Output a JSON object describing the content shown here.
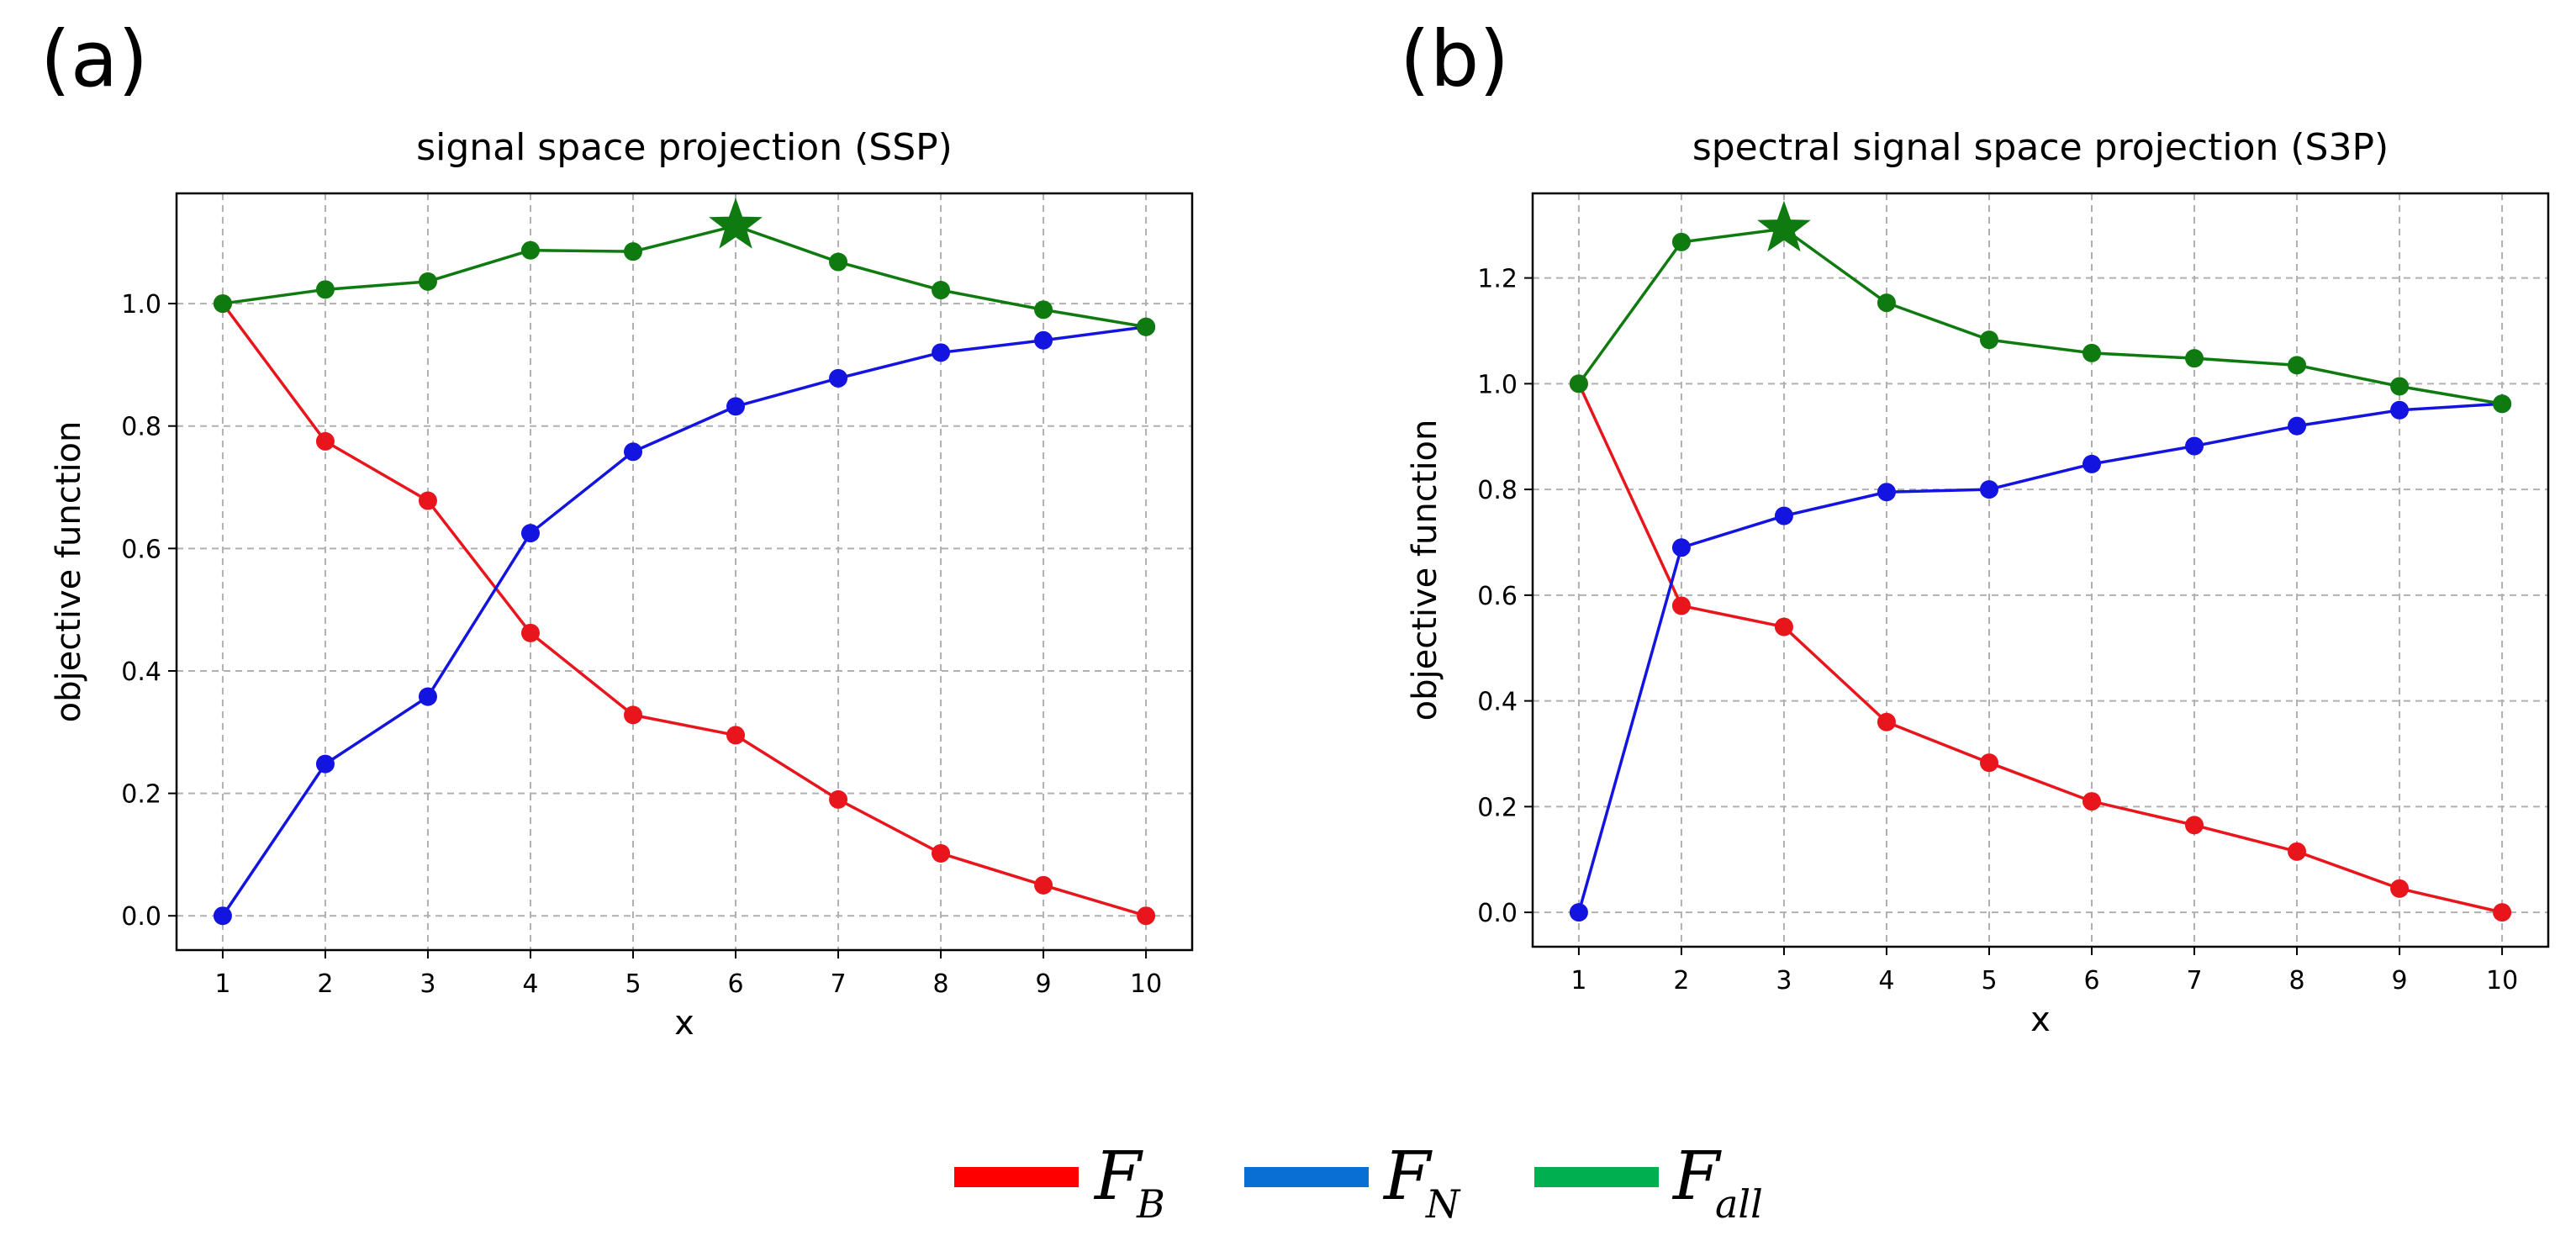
{
  "panel_labels": [
    "(a)",
    "(b)"
  ],
  "chart_data": [
    {
      "type": "line",
      "title": "signal space projection (SSP)",
      "xlabel": "x",
      "ylabel": "objective function",
      "x": [
        1,
        2,
        3,
        4,
        5,
        6,
        7,
        8,
        9,
        10
      ],
      "xlim": [
        0.55,
        10.45
      ],
      "ylim": [
        -0.056,
        1.18
      ],
      "yticks": [
        0.0,
        0.2,
        0.4,
        0.6,
        0.8,
        1.0
      ],
      "ytick_labels": [
        "0.0",
        "0.2",
        "0.4",
        "0.6",
        "0.8",
        "1.0"
      ],
      "xtick_labels": [
        "1",
        "2",
        "3",
        "4",
        "5",
        "6",
        "7",
        "8",
        "9",
        "10"
      ],
      "grid": true,
      "series": [
        {
          "name": "F_B",
          "color": "#e8161c",
          "values": [
            1.0,
            0.775,
            0.678,
            0.462,
            0.328,
            0.295,
            0.19,
            0.102,
            0.05,
            0.0
          ]
        },
        {
          "name": "F_N",
          "color": "#1414e0",
          "values": [
            0.0,
            0.248,
            0.358,
            0.625,
            0.758,
            0.832,
            0.878,
            0.92,
            0.94,
            0.962
          ]
        },
        {
          "name": "F_all",
          "color": "#0f7a0f",
          "values": [
            1.0,
            1.023,
            1.036,
            1.087,
            1.085,
            1.127,
            1.068,
            1.022,
            0.99,
            0.962
          ]
        }
      ],
      "optimum_marker": {
        "series": "F_all",
        "x": 6,
        "value": 1.127
      }
    },
    {
      "type": "line",
      "title": "spectral signal space projection (S3P)",
      "xlabel": "x",
      "ylabel": "objective function",
      "x": [
        1,
        2,
        3,
        4,
        5,
        6,
        7,
        8,
        9,
        10
      ],
      "xlim": [
        0.55,
        10.45
      ],
      "ylim": [
        -0.065,
        1.36
      ],
      "yticks": [
        0.0,
        0.2,
        0.4,
        0.6,
        0.8,
        1.0,
        1.2
      ],
      "ytick_labels": [
        "0.0",
        "0.2",
        "0.4",
        "0.6",
        "0.8",
        "1.0",
        "1.2"
      ],
      "xtick_labels": [
        "1",
        "2",
        "3",
        "4",
        "5",
        "6",
        "7",
        "8",
        "9",
        "10"
      ],
      "grid": true,
      "series": [
        {
          "name": "F_B",
          "color": "#e8161c",
          "values": [
            1.0,
            0.58,
            0.54,
            0.36,
            0.283,
            0.21,
            0.165,
            0.115,
            0.045,
            0.0
          ]
        },
        {
          "name": "F_N",
          "color": "#1414e0",
          "values": [
            0.0,
            0.69,
            0.75,
            0.795,
            0.8,
            0.848,
            0.882,
            0.92,
            0.95,
            0.962
          ]
        },
        {
          "name": "F_all",
          "color": "#0f7a0f",
          "values": [
            1.0,
            1.268,
            1.293,
            1.153,
            1.083,
            1.058,
            1.048,
            1.035,
            0.995,
            0.962
          ]
        }
      ],
      "optimum_marker": {
        "series": "F_all",
        "x": 3,
        "value": 1.293
      }
    }
  ],
  "legend": {
    "placement": "bottom-center",
    "entries": [
      {
        "main": "F",
        "sub": "B",
        "color": "#ff0000"
      },
      {
        "main": "F",
        "sub": "N",
        "color": "#0a6fd4"
      },
      {
        "main": "F",
        "sub": "all",
        "color": "#00b050"
      }
    ]
  }
}
